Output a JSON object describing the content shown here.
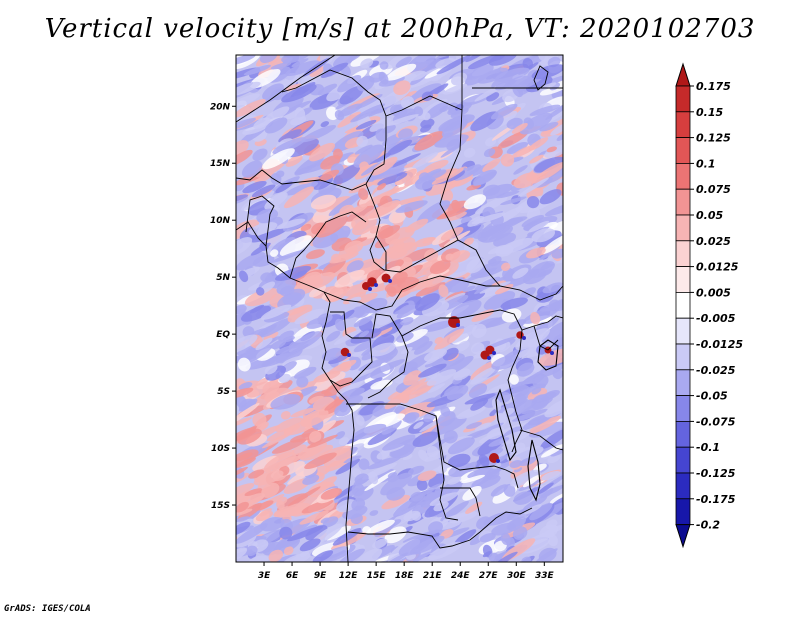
{
  "title": "Vertical velocity [m/s] at 200hPa, VT: 2020102703",
  "credit": "GrADS: IGES/COLA",
  "map": {
    "lon_range": [
      0,
      35
    ],
    "lat_range": [
      -20,
      24.5
    ],
    "lat_ticks": [
      {
        "value": 20,
        "label": "20N"
      },
      {
        "value": 15,
        "label": "15N"
      },
      {
        "value": 10,
        "label": "10N"
      },
      {
        "value": 5,
        "label": "5N"
      },
      {
        "value": 0,
        "label": "EQ"
      },
      {
        "value": -5,
        "label": "5S"
      },
      {
        "value": -10,
        "label": "10S"
      },
      {
        "value": -15,
        "label": "15S"
      }
    ],
    "lon_ticks": [
      {
        "value": 3,
        "label": "3E"
      },
      {
        "value": 6,
        "label": "6E"
      },
      {
        "value": 9,
        "label": "9E"
      },
      {
        "value": 12,
        "label": "12E"
      },
      {
        "value": 15,
        "label": "15E"
      },
      {
        "value": 18,
        "label": "18E"
      },
      {
        "value": 21,
        "label": "21E"
      },
      {
        "value": 24,
        "label": "24E"
      },
      {
        "value": 27,
        "label": "27E"
      },
      {
        "value": 30,
        "label": "30E"
      },
      {
        "value": 33,
        "label": "33E"
      }
    ]
  },
  "colorbar": {
    "levels": [
      "0.175",
      "0.15",
      "0.125",
      "0.1",
      "0.075",
      "0.05",
      "0.025",
      "0.0125",
      "0.005",
      "-0.005",
      "-0.0125",
      "-0.025",
      "-0.05",
      "-0.075",
      "-0.1",
      "-0.125",
      "-0.175",
      "-0.2"
    ],
    "colors": [
      "#b01818",
      "#c52a2a",
      "#d63e3e",
      "#e25656",
      "#ec7474",
      "#f29494",
      "#f7b4b4",
      "#fbd2d2",
      "#fdeaea",
      "#ffffff",
      "#e6e6fb",
      "#cacaf6",
      "#a9a9f1",
      "#8787ea",
      "#6464df",
      "#4545d1",
      "#2b2bc0",
      "#1717aa",
      "#0c0c90"
    ]
  },
  "chart_data": {
    "type": "heatmap",
    "title": "Vertical velocity [m/s] at 200hPa, VT: 2020102703",
    "variable": "Vertical velocity",
    "units": "m/s",
    "level": "200hPa",
    "valid_time": "2020102703",
    "x_range": [
      0,
      35
    ],
    "y_range": [
      -20,
      24.5
    ],
    "x_ticks": [
      "3E",
      "6E",
      "9E",
      "12E",
      "15E",
      "18E",
      "21E",
      "24E",
      "27E",
      "30E",
      "33E"
    ],
    "y_ticks": [
      "20N",
      "15N",
      "10N",
      "5N",
      "EQ",
      "5S",
      "10S",
      "15S"
    ],
    "contour_levels": [
      -0.2,
      -0.175,
      -0.125,
      -0.1,
      -0.075,
      -0.05,
      -0.025,
      -0.0125,
      -0.005,
      0.005,
      0.0125,
      0.025,
      0.05,
      0.075,
      0.1,
      0.125,
      0.15,
      0.175
    ]
  }
}
